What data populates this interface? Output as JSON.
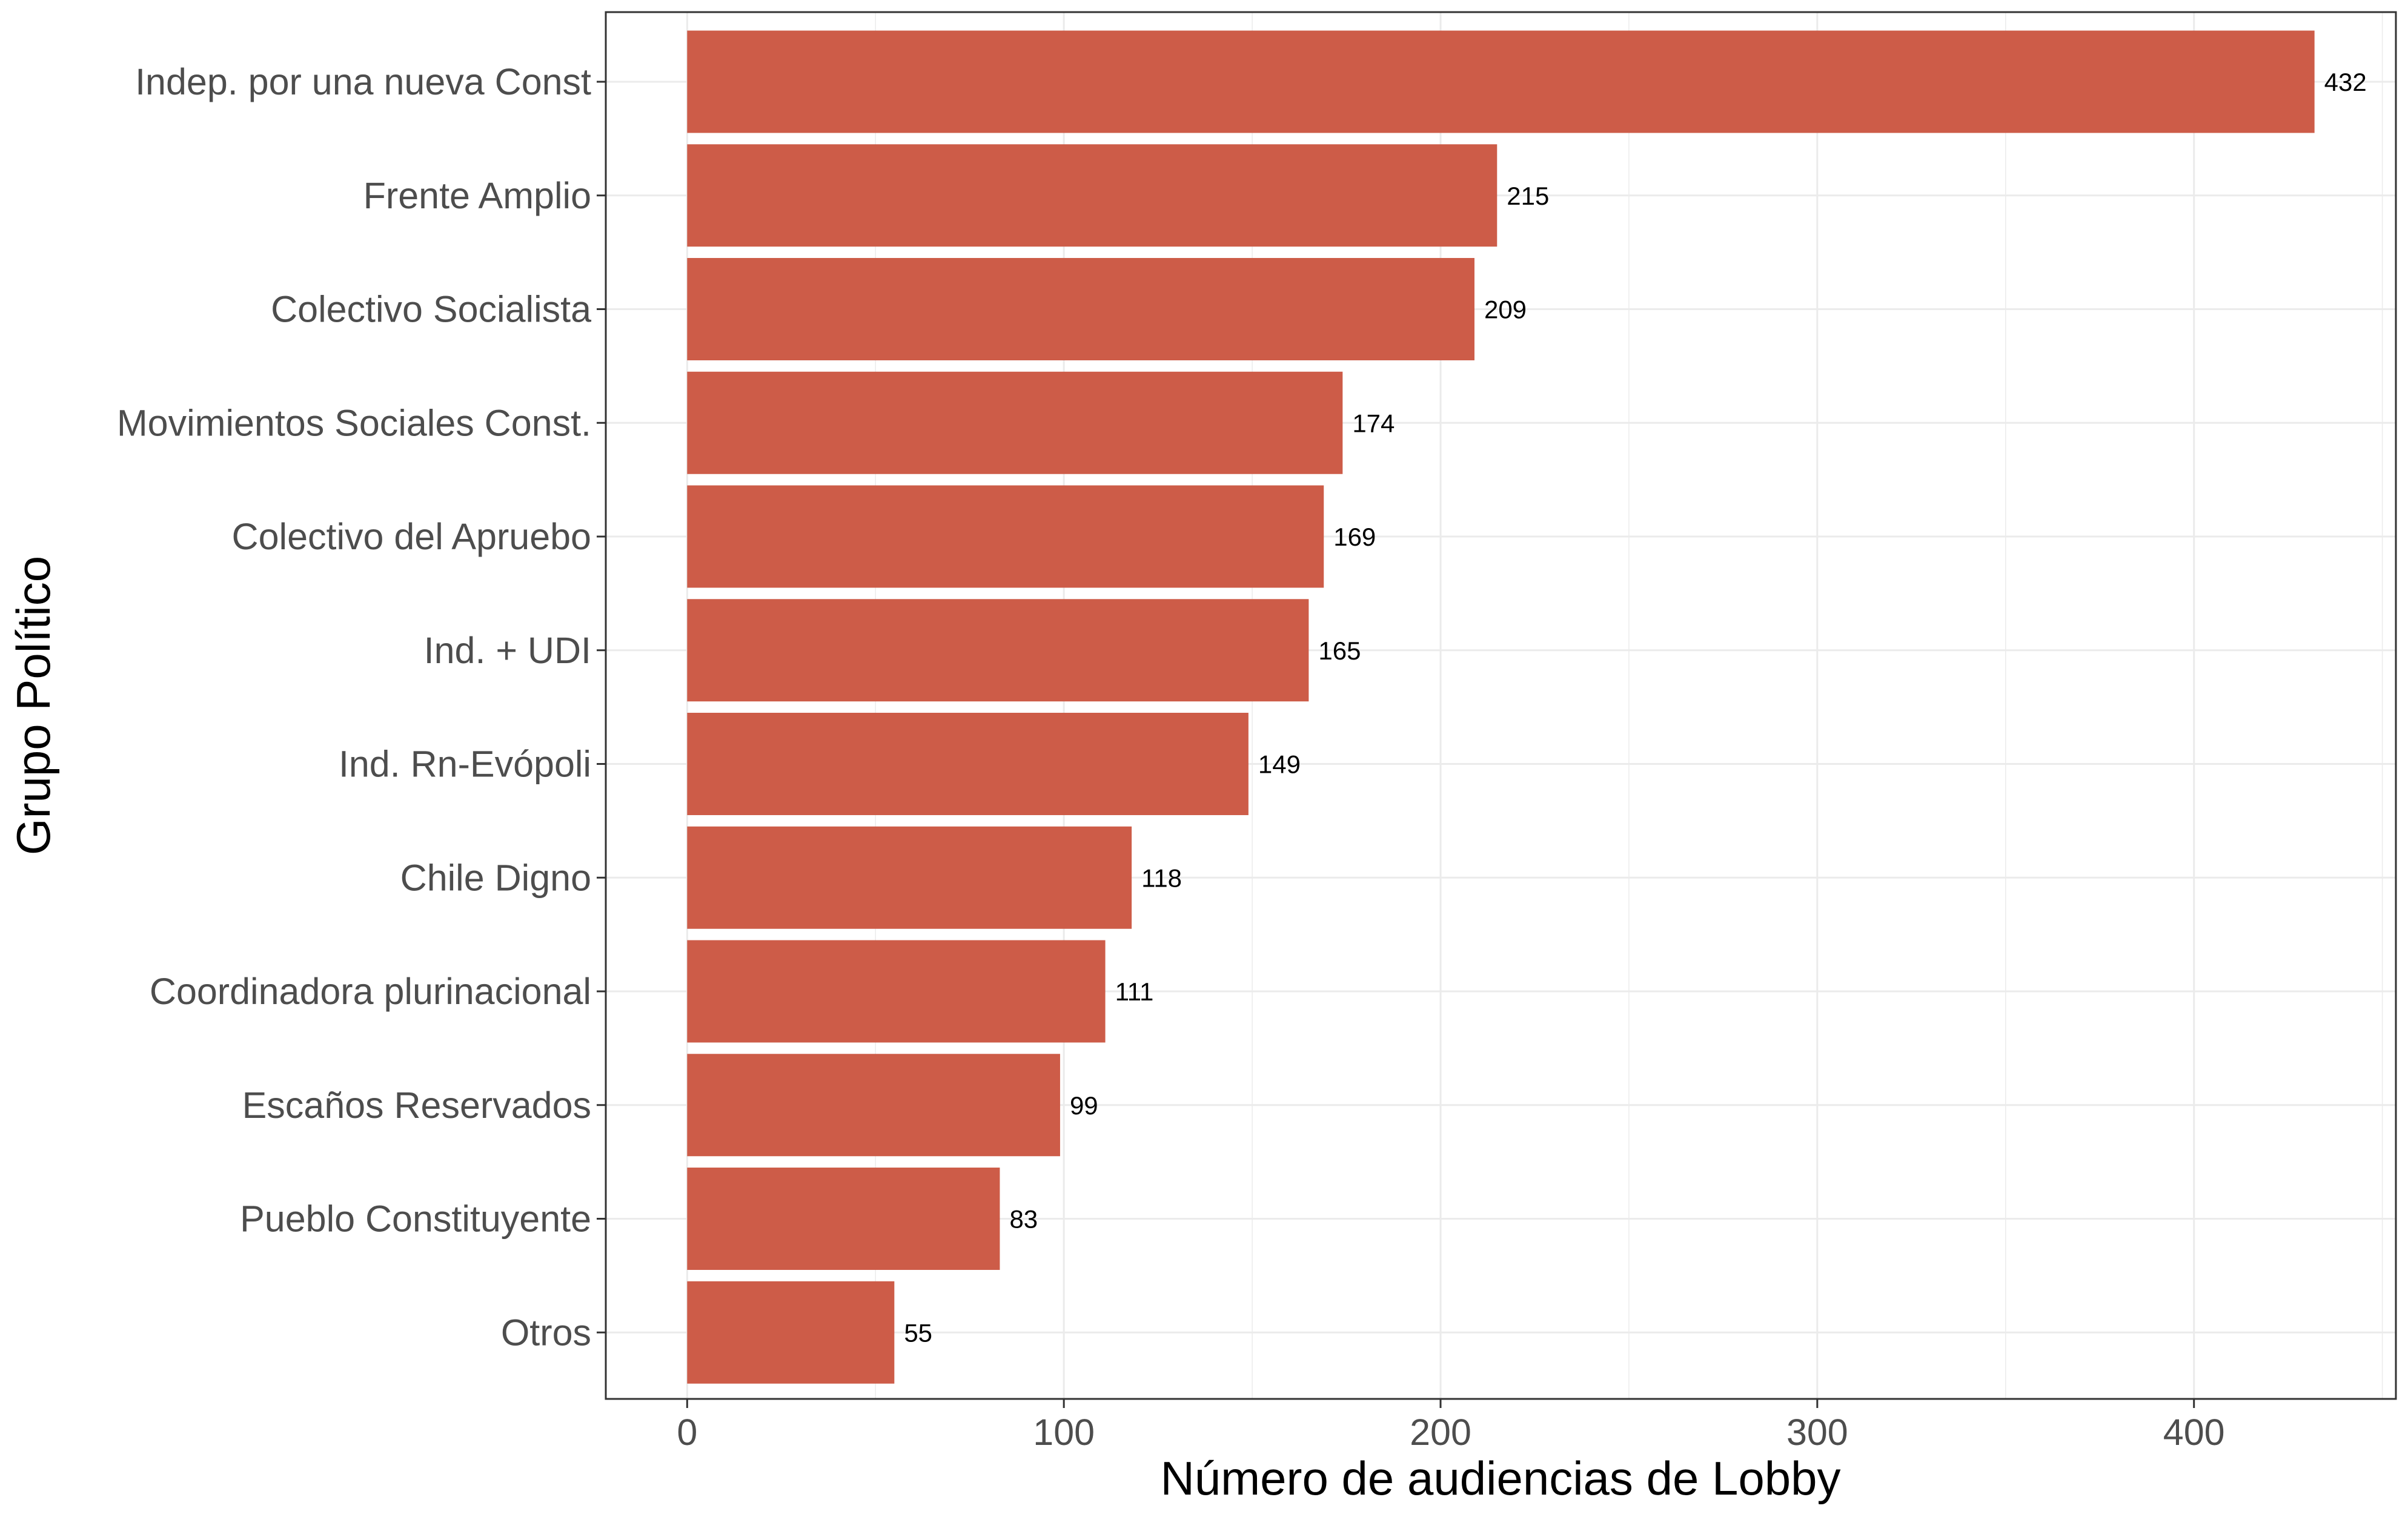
{
  "chart_data": {
    "type": "bar",
    "orientation": "horizontal",
    "title": "",
    "xlabel": "Número de audiencias de Lobby",
    "ylabel": "Grupo Político",
    "categories": [
      "Indep. por una nueva Const",
      "Frente Amplio",
      "Colectivo Socialista",
      "Movimientos Sociales Const.",
      "Colectivo del Apruebo",
      "Ind. + UDI",
      "Ind. Rn-Evópoli",
      "Chile Digno",
      "Coordinadora plurinacional",
      "Escaños Reservados",
      "Pueblo Constituyente",
      "Otros"
    ],
    "values": [
      432,
      215,
      209,
      174,
      169,
      165,
      149,
      118,
      111,
      99,
      83,
      55
    ],
    "data_labels": [
      "432",
      "215",
      "209",
      "174",
      "169",
      "165",
      "149",
      "118",
      "111",
      "99",
      "83",
      "55"
    ],
    "x_ticks": [
      0,
      100,
      200,
      300,
      400
    ],
    "x_tick_labels": [
      "0",
      "100",
      "200",
      "300",
      "400"
    ],
    "xlim": [
      -21.6,
      453.6
    ],
    "bar_color": "#CD5C48",
    "grid": true,
    "legend": "none"
  }
}
